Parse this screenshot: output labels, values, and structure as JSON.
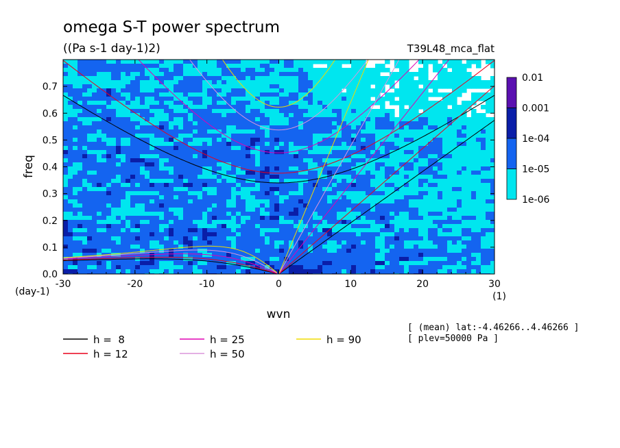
{
  "chart_data": {
    "type": "heatmap",
    "title": "omega S-T power spectrum",
    "subtitle": "((Pa s-1 day-1)2)",
    "run_label": "T39L48_mca_flat",
    "xlabel": "wvn",
    "ylabel": "freq",
    "x_unit": "(1)",
    "y_unit": "(day-1)",
    "xlim": [
      -30,
      30
    ],
    "ylim": [
      0,
      0.8
    ],
    "x_ticks": [
      -30,
      -20,
      -10,
      0,
      10,
      20,
      30
    ],
    "x_tick_labels": [
      "-30",
      "-20",
      "-10",
      "0",
      "10",
      "20",
      "30"
    ],
    "y_ticks": [
      0,
      0.1,
      0.2,
      0.3,
      0.4,
      0.5,
      0.6,
      0.7
    ],
    "y_tick_labels": [
      "0.0",
      "0.1",
      "0.2",
      "0.3",
      "0.4",
      "0.5",
      "0.6",
      "0.7"
    ],
    "colorbar": {
      "levels": [
        "0.01",
        "0.001",
        "1e-04",
        "1e-05",
        "1e-06"
      ],
      "colors": [
        "#5a10b0",
        "#0a1ea8",
        "#1464f0",
        "#00e6ef"
      ],
      "placement": "right"
    },
    "background_colors": {
      "below_lowest": "#ffffff"
    },
    "annotations": [
      "[ (mean) lat:-4.46266..4.46266 ]",
      "[ plev=50000 Pa ]"
    ],
    "legend": {
      "placement": "bottom",
      "entries": [
        {
          "label": "h =  8",
          "color": "#000000"
        },
        {
          "label": "h = 12",
          "color": "#e8001c"
        },
        {
          "label": "h = 25",
          "color": "#e000b4"
        },
        {
          "label": "h = 50",
          "color": "#dc96dc"
        },
        {
          "label": "h = 90",
          "color": "#f0dc00"
        }
      ]
    },
    "curves": {
      "equivalent_depths_m": [
        8,
        12,
        25,
        50,
        90
      ],
      "families": [
        "kelvin",
        "n1_inertia_gravity",
        "n1_rossby"
      ]
    }
  }
}
